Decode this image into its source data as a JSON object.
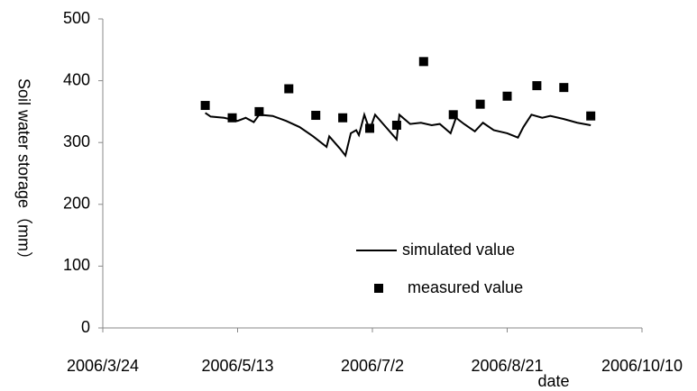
{
  "chart_data": {
    "type": "line",
    "x_label": "date",
    "y_label": "Soil water storage（mm）",
    "xlim": [
      "2006/3/24",
      "2006/10/10"
    ],
    "xticks": [
      "2006/3/24",
      "2006/5/13",
      "2006/7/2",
      "2006/8/21",
      "2006/10/10"
    ],
    "ylim": [
      0,
      500
    ],
    "yticks": [
      0,
      100,
      200,
      300,
      400,
      500
    ],
    "grid": false,
    "legend": "lower right",
    "series": [
      {
        "name": "simulated value",
        "type": "line",
        "color": "#000000",
        "x": [
          "2006/5/1",
          "2006/5/3",
          "2006/5/8",
          "2006/5/13",
          "2006/5/16",
          "2006/5/19",
          "2006/5/21",
          "2006/5/26",
          "2006/5/31",
          "2006/6/5",
          "2006/6/10",
          "2006/6/15",
          "2006/6/16",
          "2006/6/20",
          "2006/6/22",
          "2006/6/24",
          "2006/6/26",
          "2006/6/27",
          "2006/6/29",
          "2006/7/1",
          "2006/7/3",
          "2006/7/6",
          "2006/7/10",
          "2006/7/11",
          "2006/7/12",
          "2006/7/16",
          "2006/7/20",
          "2006/7/24",
          "2006/7/27",
          "2006/7/31",
          "2006/8/2",
          "2006/8/5",
          "2006/8/9",
          "2006/8/12",
          "2006/8/16",
          "2006/8/21",
          "2006/8/25",
          "2006/8/27",
          "2006/8/30",
          "2006/9/3",
          "2006/9/6",
          "2006/9/11",
          "2006/9/16",
          "2006/9/21"
        ],
        "values": [
          348,
          342,
          340,
          335,
          340,
          333,
          345,
          343,
          335,
          325,
          310,
          293,
          310,
          290,
          279,
          315,
          320,
          312,
          345,
          320,
          345,
          330,
          310,
          305,
          345,
          330,
          332,
          328,
          330,
          315,
          340,
          330,
          318,
          332,
          320,
          315,
          308,
          325,
          345,
          340,
          343,
          338,
          332,
          328
        ]
      },
      {
        "name": "measured value",
        "type": "scatter",
        "color": "#000000",
        "x": [
          "2006/5/1",
          "2006/5/11",
          "2006/5/21",
          "2006/6/1",
          "2006/6/11",
          "2006/6/21",
          "2006/7/1",
          "2006/7/11",
          "2006/7/21",
          "2006/8/1",
          "2006/8/11",
          "2006/8/21",
          "2006/9/1",
          "2006/9/11",
          "2006/9/21"
        ],
        "values": [
          360,
          340,
          350,
          387,
          344,
          340,
          323,
          328,
          431,
          345,
          362,
          375,
          392,
          389,
          343
        ]
      }
    ]
  }
}
